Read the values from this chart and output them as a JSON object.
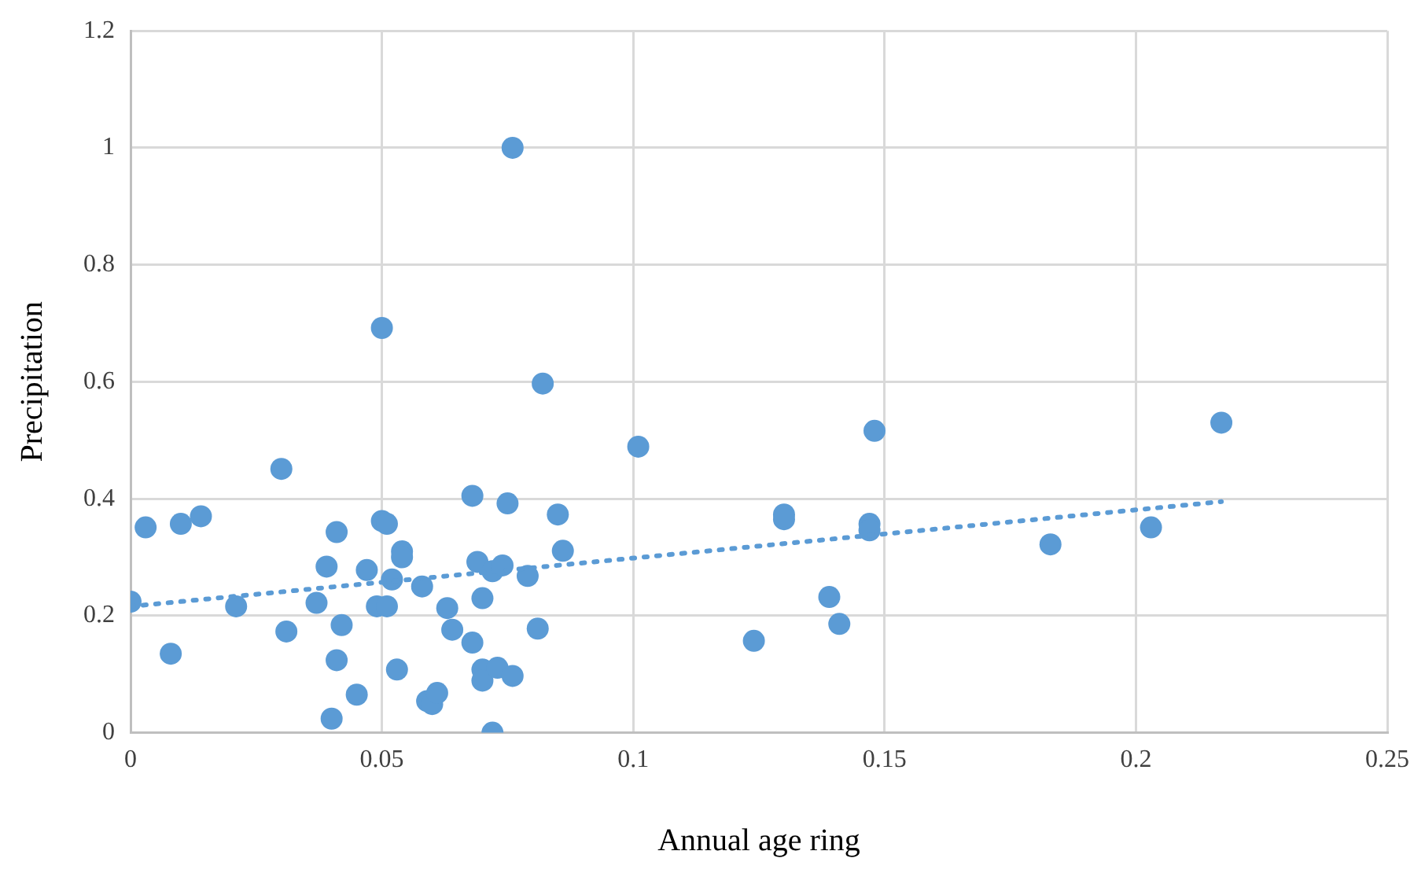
{
  "chart_data": {
    "type": "scatter",
    "xlabel": "Annual age ring",
    "ylabel": "Precipitation",
    "xlim": [
      0,
      0.25
    ],
    "xticks": [
      0,
      0.05,
      0.1,
      0.15,
      0.2,
      0.25
    ],
    "ylim": [
      0,
      1.2
    ],
    "yticks": [
      0,
      0.2,
      0.4,
      0.6,
      0.8,
      1,
      1.2
    ],
    "grid": true,
    "legend": false,
    "marker": "circle",
    "series": [
      {
        "color": "#5b9bd5",
        "x": [
          0,
          0.003,
          0.008,
          0.01,
          0.014,
          0.021,
          0.03,
          0.031,
          0.037,
          0.039,
          0.04,
          0.041,
          0.041,
          0.042,
          0.045,
          0.047,
          0.049,
          0.05,
          0.05,
          0.051,
          0.051,
          0.052,
          0.053,
          0.054,
          0.054,
          0.058,
          0.059,
          0.06,
          0.061,
          0.063,
          0.064,
          0.068,
          0.068,
          0.069,
          0.07,
          0.07,
          0.07,
          0.072,
          0.072,
          0.073,
          0.074,
          0.075,
          0.076,
          0.076,
          0.079,
          0.081,
          0.082,
          0.085,
          0.086,
          0.101,
          0.124,
          0.13,
          0.13,
          0.139,
          0.141,
          0.148,
          0.147,
          0.147,
          0.183,
          0.203,
          0.217
        ],
        "values": [
          0.224,
          0.351,
          0.135,
          0.357,
          0.37,
          0.216,
          0.451,
          0.173,
          0.222,
          0.284,
          0.024,
          0.124,
          0.343,
          0.184,
          0.065,
          0.278,
          0.216,
          0.362,
          0.692,
          0.357,
          0.216,
          0.262,
          0.108,
          0.31,
          0.3,
          0.25,
          0.054,
          0.049,
          0.068,
          0.213,
          0.176,
          0.154,
          0.405,
          0.292,
          0.108,
          0.089,
          0.23,
          0,
          0.276,
          0.111,
          0.286,
          0.392,
          0.097,
          1,
          0.268,
          0.178,
          0.597,
          0.373,
          0.311,
          0.489,
          0.157,
          0.373,
          0.365,
          0.232,
          0.186,
          0.516,
          0.357,
          0.346,
          0.322,
          0.351,
          0.53
        ]
      },
      {
        "type": "line",
        "color": "#5b9bd5",
        "line_style": "dotted",
        "marker": "none",
        "x": [
          0,
          0.217
        ],
        "values": [
          0.216,
          0.395
        ]
      }
    ]
  }
}
